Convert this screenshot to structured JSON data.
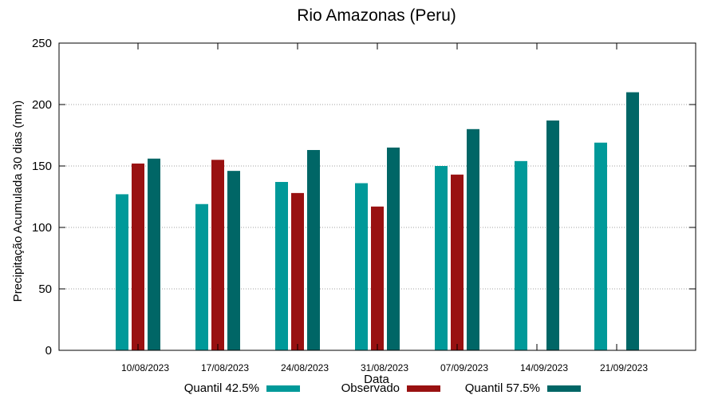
{
  "chart_data": {
    "type": "bar",
    "title": "Rio Amazonas (Peru)",
    "xlabel": "Data",
    "ylabel": "Precipitação Acumulada 30 dias (mm)",
    "ylim": [
      0,
      250
    ],
    "yticks": [
      0,
      50,
      100,
      150,
      200,
      250
    ],
    "grid": true,
    "legend_position": "bottom",
    "categories": [
      "10/08/2023",
      "17/08/2023",
      "24/08/2023",
      "31/08/2023",
      "07/09/2023",
      "14/09/2023",
      "21/09/2023"
    ],
    "series": [
      {
        "name": "Quantil 42.5%",
        "color": "#009999",
        "values": [
          127,
          119,
          137,
          136,
          150,
          154,
          169
        ]
      },
      {
        "name": "Observado",
        "color": "#991111",
        "values": [
          152,
          155,
          128,
          117,
          143,
          null,
          null
        ]
      },
      {
        "name": "Quantil 57.5%",
        "color": "#006666",
        "values": [
          156,
          146,
          163,
          165,
          180,
          187,
          210
        ]
      }
    ]
  }
}
